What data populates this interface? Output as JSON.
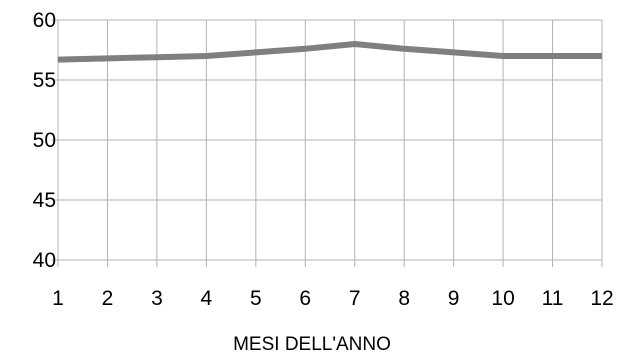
{
  "chart_data": {
    "type": "line",
    "title": "",
    "xlabel": "MESI DELL'ANNO",
    "ylabel": "",
    "x": [
      1,
      2,
      3,
      4,
      5,
      6,
      7,
      8,
      9,
      10,
      11,
      12
    ],
    "x_tick_labels": [
      "1",
      "2",
      "3",
      "4",
      "5",
      "6",
      "7",
      "8",
      "9",
      "10",
      "11",
      "12"
    ],
    "y_tick_labels": [
      "40",
      "45",
      "50",
      "55",
      "60"
    ],
    "ylim": [
      40,
      60
    ],
    "y_ticks": [
      40,
      45,
      50,
      55,
      60
    ],
    "grid": true,
    "legend": "none",
    "series": [
      {
        "values": [
          56.7,
          56.8,
          56.9,
          57.0,
          57.3,
          57.6,
          58.0,
          57.6,
          57.3,
          57.0,
          57.0,
          57.0
        ],
        "color": "#7f7f7f"
      }
    ]
  }
}
